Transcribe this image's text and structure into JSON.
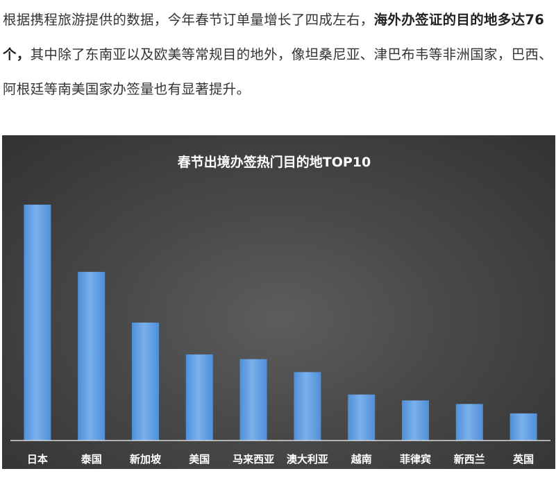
{
  "article": {
    "part1": "根据携程旅游提供的数据，今年春节订单量增长了四成左右，",
    "bold": "海外办签证的目的地多达76个，",
    "part2": "其中除了东南亚以及欧美等常规目的地外，像坦桑尼亚、津巴布韦等非洲国家，巴西、阿根廷等南美国家办签量也有显著提升。"
  },
  "chart_data": {
    "type": "bar",
    "title": "春节出境办签热门目的地TOP10",
    "categories": [
      "日本",
      "泰国",
      "新加坡",
      "美国",
      "马来西亚",
      "澳大利亚",
      "越南",
      "菲律宾",
      "新西兰",
      "英国"
    ],
    "values": [
      100,
      71.5,
      50,
      36.5,
      34.5,
      29,
      19.5,
      17,
      15.5,
      11.5
    ],
    "ylim": [
      0,
      100
    ],
    "xlabel": "",
    "ylabel": "",
    "grid": false,
    "legend": "none",
    "bar_color": "#5b9be0",
    "bar_color_light": "#7fb3ee",
    "baseline_color": "#d8d8d8",
    "label_color": "#ffffff"
  }
}
